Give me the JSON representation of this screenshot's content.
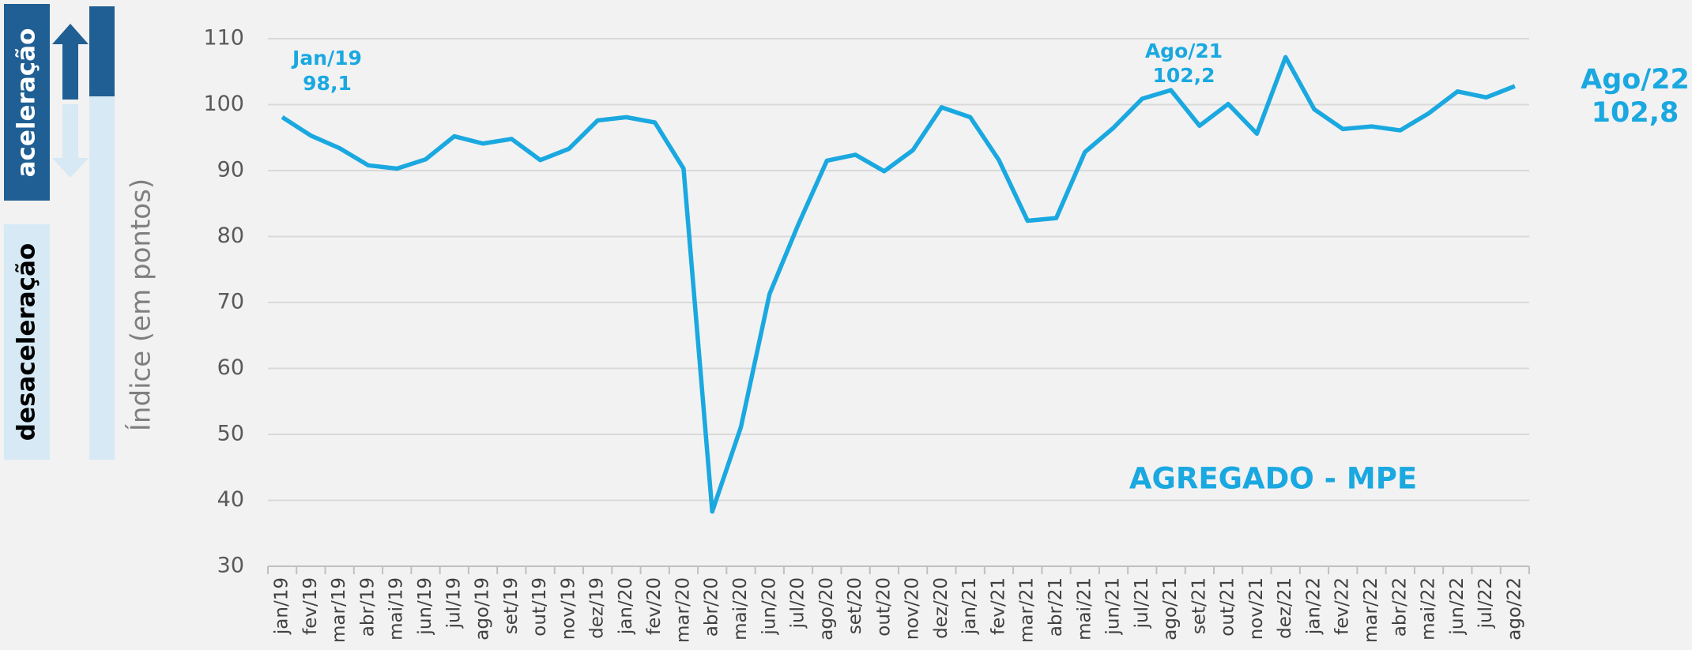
{
  "chart_data": {
    "type": "line",
    "title": "AGREGADO - MPE",
    "y_label": "Índice (em pontos)",
    "side_labels": {
      "top": "aceleração",
      "bottom": "desaceleração"
    },
    "annotations": [
      {
        "date": "Jan/19",
        "value": "98,1"
      },
      {
        "date": "Ago/21",
        "value": "102,2"
      },
      {
        "date": "Ago/22",
        "value": "102,8"
      }
    ],
    "categories": [
      "jan/19",
      "fev/19",
      "mar/19",
      "abr/19",
      "mai/19",
      "jun/19",
      "jul/19",
      "ago/19",
      "set/19",
      "out/19",
      "nov/19",
      "dez/19",
      "jan/20",
      "fev/20",
      "mar/20",
      "abr/20",
      "mai/20",
      "jun/20",
      "jul/20",
      "ago/20",
      "set/20",
      "out/20",
      "nov/20",
      "dez/20",
      "jan/21",
      "fev/21",
      "mar/21",
      "abr/21",
      "mai/21",
      "jun/21",
      "jul/21",
      "ago/21",
      "set/21",
      "out/21",
      "nov/21",
      "dez/21",
      "jan/22",
      "fev/22",
      "mar/22",
      "abr/22",
      "mai/22",
      "jun/22",
      "jul/22",
      "ago/22"
    ],
    "series": [
      {
        "name": "AGREGADO - MPE",
        "color": "#1aa8e0",
        "values": [
          98.1,
          95.3,
          93.4,
          90.8,
          90.3,
          91.7,
          95.2,
          94.1,
          94.8,
          91.6,
          93.3,
          97.6,
          98.1,
          97.3,
          90.3,
          38.3,
          51.1,
          71.3,
          81.8,
          91.5,
          92.4,
          89.9,
          93.1,
          99.6,
          98.1,
          91.6,
          82.4,
          82.8,
          92.8,
          96.5,
          100.9,
          102.2,
          96.8,
          100.1,
          95.6,
          107.2,
          99.3,
          96.3,
          96.7,
          96.1,
          98.7,
          102,
          101.1,
          102.8
        ]
      }
    ],
    "ylim": [
      30,
      110
    ],
    "yticks": [
      30,
      40,
      50,
      60,
      70,
      80,
      90,
      100,
      110
    ],
    "grid": true
  }
}
